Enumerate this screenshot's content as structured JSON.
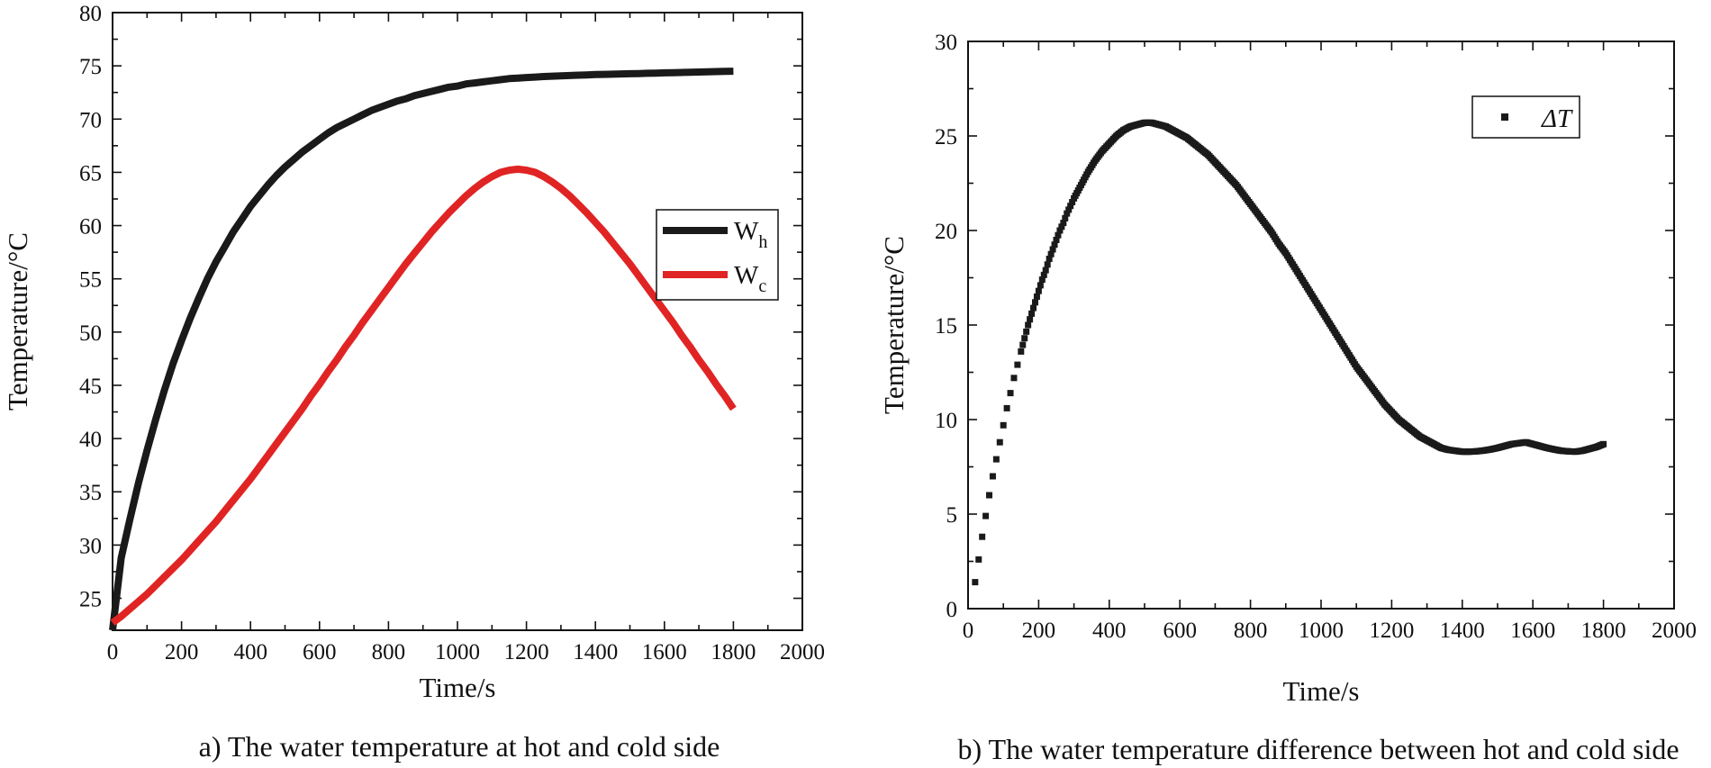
{
  "chart_data": [
    {
      "type": "line",
      "caption": "a) The water temperature at hot and cold side",
      "xlabel": "Time/s",
      "ylabel": "Temperature/°C",
      "xlim": [
        0,
        2000
      ],
      "ylim": [
        22,
        80
      ],
      "xticks": [
        "0",
        "200",
        "400",
        "600",
        "800",
        "1000",
        "1200",
        "1400",
        "1600",
        "1800",
        "2000"
      ],
      "yticks": [
        "25",
        "30",
        "35",
        "40",
        "45",
        "50",
        "55",
        "60",
        "65",
        "70",
        "75",
        "80"
      ],
      "x": [
        0,
        25,
        50,
        75,
        100,
        125,
        150,
        175,
        200,
        225,
        250,
        275,
        300,
        325,
        350,
        375,
        400,
        425,
        450,
        475,
        500,
        525,
        550,
        575,
        600,
        625,
        650,
        675,
        700,
        725,
        750,
        775,
        800,
        825,
        850,
        875,
        900,
        925,
        950,
        975,
        1000,
        1025,
        1050,
        1075,
        1100,
        1125,
        1150,
        1175,
        1200,
        1225,
        1250,
        1275,
        1300,
        1325,
        1350,
        1375,
        1400,
        1425,
        1450,
        1475,
        1500,
        1525,
        1550,
        1575,
        1600,
        1625,
        1650,
        1675,
        1700,
        1725,
        1750,
        1775,
        1800
      ],
      "series": [
        {
          "name": "W",
          "sub": "h",
          "color": "#1a1a1a",
          "values": [
            22.0,
            28.8,
            32.4,
            35.8,
            38.9,
            41.8,
            44.5,
            47.0,
            49.2,
            51.3,
            53.2,
            55.0,
            56.6,
            58.0,
            59.4,
            60.6,
            61.8,
            62.8,
            63.8,
            64.7,
            65.5,
            66.2,
            66.9,
            67.5,
            68.1,
            68.7,
            69.2,
            69.6,
            70.0,
            70.4,
            70.8,
            71.1,
            71.4,
            71.7,
            71.9,
            72.2,
            72.4,
            72.6,
            72.8,
            73.0,
            73.1,
            73.3,
            73.4,
            73.5,
            73.6,
            73.7,
            73.8,
            73.85,
            73.9,
            73.95,
            74.0,
            74.03,
            74.06,
            74.09,
            74.12,
            74.15,
            74.18,
            74.2,
            74.22,
            74.24,
            74.26,
            74.28,
            74.3,
            74.32,
            74.34,
            74.36,
            74.38,
            74.4,
            74.42,
            74.44,
            74.46,
            74.48,
            74.5
          ]
        },
        {
          "name": "W",
          "sub": "c",
          "color": "#e02424",
          "values": [
            22.7,
            23.3,
            24.0,
            24.7,
            25.4,
            26.2,
            27.0,
            27.8,
            28.6,
            29.5,
            30.4,
            31.3,
            32.2,
            33.2,
            34.2,
            35.2,
            36.2,
            37.3,
            38.4,
            39.5,
            40.6,
            41.7,
            42.8,
            44.0,
            45.1,
            46.3,
            47.4,
            48.6,
            49.7,
            50.9,
            52.0,
            53.1,
            54.2,
            55.3,
            56.4,
            57.4,
            58.4,
            59.4,
            60.3,
            61.2,
            62.0,
            62.8,
            63.5,
            64.1,
            64.6,
            65.0,
            65.2,
            65.3,
            65.2,
            65.0,
            64.6,
            64.1,
            63.5,
            62.8,
            62.0,
            61.2,
            60.3,
            59.4,
            58.4,
            57.4,
            56.4,
            55.3,
            54.2,
            53.1,
            52.0,
            50.9,
            49.7,
            48.6,
            47.4,
            46.3,
            45.1,
            44.0,
            42.8
          ]
        }
      ]
    },
    {
      "type": "scatter",
      "caption": "b) The water temperature difference between hot and cold side",
      "xlabel": "Time/s",
      "ylabel": "Temperature/°C",
      "xlim": [
        0,
        2000
      ],
      "ylim": [
        0,
        30
      ],
      "xticks": [
        "0",
        "200",
        "400",
        "600",
        "800",
        "1000",
        "1200",
        "1400",
        "1600",
        "1800",
        "2000"
      ],
      "yticks": [
        "0",
        "5",
        "10",
        "15",
        "20",
        "25",
        "30"
      ],
      "series": [
        {
          "name": "ΔT",
          "color": "#1a1a1a",
          "x": [
            20,
            30,
            40,
            50,
            60,
            70,
            80,
            90,
            100,
            110,
            120,
            130,
            140,
            150,
            160,
            170,
            180,
            190,
            200,
            210,
            220,
            230,
            240,
            250,
            260,
            270,
            280,
            290,
            300,
            320,
            340,
            360,
            380,
            400,
            420,
            440,
            460,
            480,
            500,
            520,
            540,
            560,
            580,
            600,
            620,
            640,
            660,
            680,
            700,
            720,
            740,
            760,
            780,
            800,
            820,
            840,
            860,
            880,
            900,
            920,
            940,
            960,
            980,
            1000,
            1020,
            1040,
            1060,
            1080,
            1100,
            1120,
            1140,
            1160,
            1180,
            1200,
            1220,
            1240,
            1260,
            1280,
            1300,
            1320,
            1340,
            1360,
            1380,
            1400,
            1420,
            1440,
            1460,
            1480,
            1500,
            1520,
            1540,
            1560,
            1580,
            1600,
            1620,
            1640,
            1660,
            1680,
            1700,
            1720,
            1740,
            1760,
            1780,
            1800
          ],
          "values": [
            1.4,
            2.6,
            3.8,
            4.9,
            6.0,
            7.0,
            7.9,
            8.8,
            9.7,
            10.6,
            11.4,
            12.2,
            12.9,
            13.6,
            14.3,
            15.0,
            15.6,
            16.2,
            16.8,
            17.4,
            17.9,
            18.5,
            19.0,
            19.5,
            20.0,
            20.4,
            20.9,
            21.3,
            21.7,
            22.4,
            23.1,
            23.7,
            24.2,
            24.6,
            25.0,
            25.3,
            25.5,
            25.6,
            25.7,
            25.7,
            25.6,
            25.5,
            25.3,
            25.1,
            24.9,
            24.6,
            24.3,
            24.0,
            23.6,
            23.2,
            22.8,
            22.4,
            21.9,
            21.4,
            20.9,
            20.4,
            19.9,
            19.3,
            18.8,
            18.2,
            17.6,
            17.0,
            16.4,
            15.8,
            15.2,
            14.6,
            14.0,
            13.4,
            12.8,
            12.3,
            11.8,
            11.3,
            10.8,
            10.4,
            10.0,
            9.7,
            9.4,
            9.1,
            8.9,
            8.7,
            8.5,
            8.4,
            8.35,
            8.3,
            8.3,
            8.32,
            8.36,
            8.42,
            8.5,
            8.6,
            8.7,
            8.75,
            8.8,
            8.7,
            8.6,
            8.5,
            8.42,
            8.35,
            8.32,
            8.3,
            8.35,
            8.45,
            8.55,
            8.7
          ]
        }
      ]
    }
  ]
}
